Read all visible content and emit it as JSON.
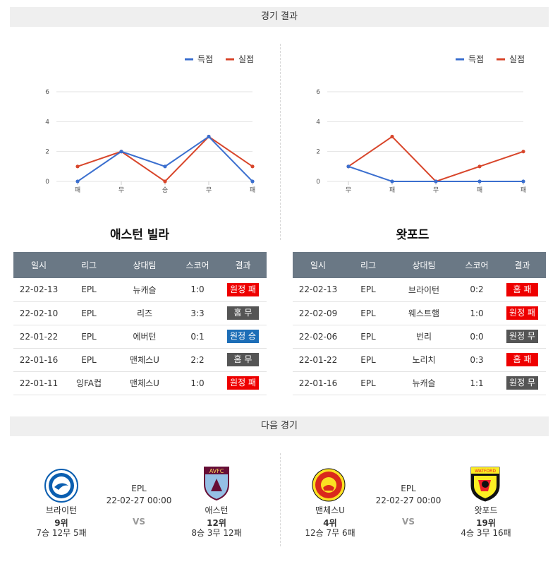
{
  "header": {
    "title": "경기 결과"
  },
  "legend": {
    "scored": "득점",
    "conceded": "실점"
  },
  "colors": {
    "scored": "#3b6fcf",
    "conceded": "#d8462b",
    "loss": "#e00000",
    "draw": "#555555",
    "win": "#1d6eb7"
  },
  "chart_data": [
    {
      "type": "line",
      "categories": [
        "패",
        "무",
        "승",
        "무",
        "패"
      ],
      "ylim": [
        0,
        6
      ],
      "yticks": [
        0,
        2,
        4,
        6
      ],
      "series": [
        {
          "name": "득점",
          "values": [
            0,
            2,
            1,
            3,
            0
          ]
        },
        {
          "name": "실점",
          "values": [
            1,
            2,
            0,
            3,
            1
          ]
        }
      ]
    },
    {
      "type": "line",
      "categories": [
        "무",
        "패",
        "무",
        "패",
        "패"
      ],
      "ylim": [
        0,
        6
      ],
      "yticks": [
        0,
        2,
        4,
        6
      ],
      "series": [
        {
          "name": "득점",
          "values": [
            1,
            0,
            0,
            0,
            0
          ]
        },
        {
          "name": "실점",
          "values": [
            1,
            3,
            0,
            1,
            2
          ]
        }
      ]
    }
  ],
  "teams": [
    {
      "name": "애스턴 빌라",
      "columns": [
        "일시",
        "리그",
        "상대팀",
        "스코어",
        "결과"
      ],
      "rows": [
        {
          "date": "22-02-13",
          "league": "EPL",
          "opp": "뉴캐슬",
          "score": "1:0",
          "result": "원정 패",
          "kind": "loss"
        },
        {
          "date": "22-02-10",
          "league": "EPL",
          "opp": "리즈",
          "score": "3:3",
          "result": "홈 무",
          "kind": "draw"
        },
        {
          "date": "22-01-22",
          "league": "EPL",
          "opp": "에버턴",
          "score": "0:1",
          "result": "원정 승",
          "kind": "win"
        },
        {
          "date": "22-01-16",
          "league": "EPL",
          "opp": "맨체스U",
          "score": "2:2",
          "result": "홈 무",
          "kind": "draw"
        },
        {
          "date": "22-01-11",
          "league": "잉FA컵",
          "opp": "맨체스U",
          "score": "1:0",
          "result": "원정 패",
          "kind": "loss"
        }
      ]
    },
    {
      "name": "왓포드",
      "columns": [
        "일시",
        "리그",
        "상대팀",
        "스코어",
        "결과"
      ],
      "rows": [
        {
          "date": "22-02-13",
          "league": "EPL",
          "opp": "브라이턴",
          "score": "0:2",
          "result": "홈 패",
          "kind": "loss"
        },
        {
          "date": "22-02-09",
          "league": "EPL",
          "opp": "웨스트햄",
          "score": "1:0",
          "result": "원정 패",
          "kind": "loss"
        },
        {
          "date": "22-02-06",
          "league": "EPL",
          "opp": "번리",
          "score": "0:0",
          "result": "원정 무",
          "kind": "draw"
        },
        {
          "date": "22-01-22",
          "league": "EPL",
          "opp": "노리치",
          "score": "0:3",
          "result": "홈 패",
          "kind": "loss"
        },
        {
          "date": "22-01-16",
          "league": "EPL",
          "opp": "뉴캐슬",
          "score": "1:1",
          "result": "원정 무",
          "kind": "draw"
        }
      ]
    }
  ],
  "next": {
    "title": "다음 경기",
    "vs": "VS",
    "matches": [
      {
        "league": "EPL",
        "datetime": "22-02-27 00:00",
        "home": {
          "name": "브라이턴",
          "rank": "9위",
          "record": "7승 12무 5패",
          "logo": "brighton-logo"
        },
        "away": {
          "name": "애스턴",
          "rank": "12위",
          "record": "8승 3무 12패",
          "logo": "aston-villa-logo",
          "logo_text": "AVFC"
        }
      },
      {
        "league": "EPL",
        "datetime": "22-02-27 00:00",
        "home": {
          "name": "맨체스U",
          "rank": "4위",
          "record": "12승 7무 6패",
          "logo": "manchester-united-logo"
        },
        "away": {
          "name": "왓포드",
          "rank": "19위",
          "record": "4승 3무 16패",
          "logo": "watford-logo",
          "logo_text": "WATFORD"
        }
      }
    ]
  }
}
